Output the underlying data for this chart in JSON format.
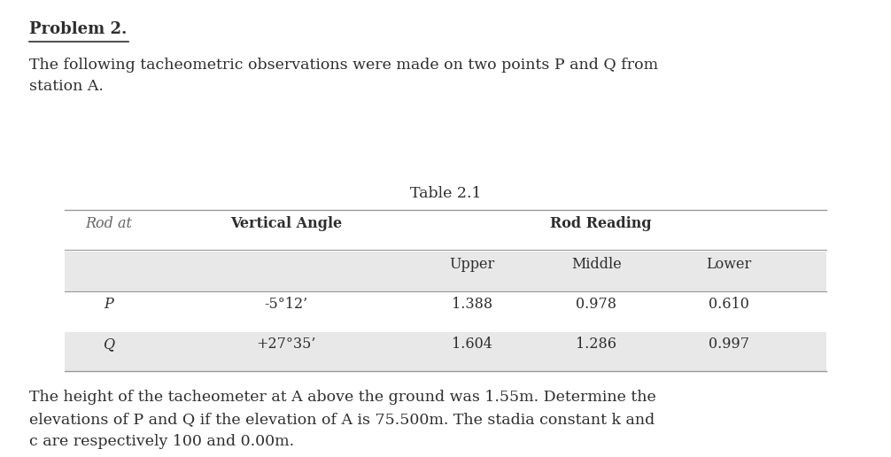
{
  "title": "Problem 2.",
  "intro_text": "The following tacheometric observations were made on two points P and Q from\nstation A.",
  "table_title": "Table 2.1",
  "rows": [
    [
      "P",
      "-5°12’",
      "1.388",
      "0.978",
      "0.610"
    ],
    [
      "Q",
      "+27°35’",
      "1.604",
      "1.286",
      "0.997"
    ]
  ],
  "footer_text": "The height of the tacheometer at A above the ground was 1.55m. Determine the\nelevations of P and Q if the elevation of A is 75.500m. The stadia constant k and\nc are respectively 100 and 0.00m.",
  "bg_color": "#ffffff",
  "text_color": "#2e2e2e",
  "header_italic_color": "#666666",
  "table_bg_shaded": "#e8e8e8",
  "table_line_color": "#999999"
}
